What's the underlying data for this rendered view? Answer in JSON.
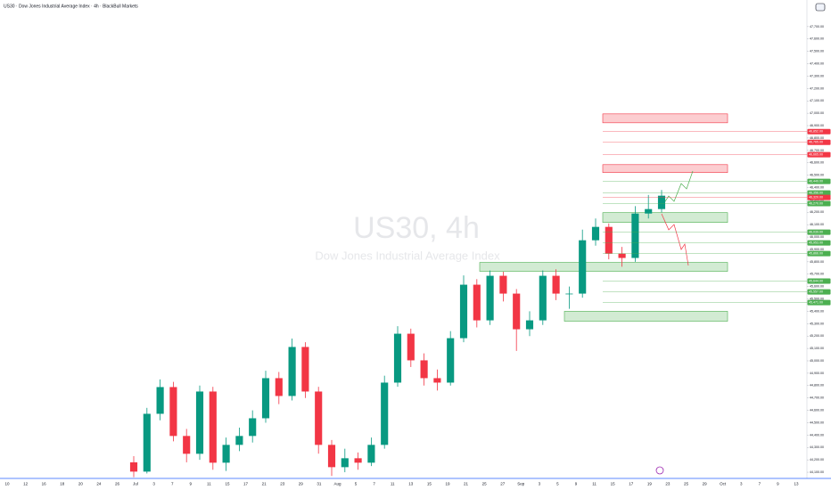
{
  "chart_data": {
    "type": "candlestick",
    "title": "US30 · Dow Jones Industrial Average Index · 4h · BlackBull Markets",
    "watermark": "US30, 4h",
    "watermark_subtitle": "Dow Jones Industrial Average Index",
    "up_color": "#089981",
    "down_color": "#f23645",
    "x_labels": [
      "10",
      "12",
      "16",
      "18",
      "20",
      "24",
      "26",
      "Jul",
      "3",
      "7",
      "9",
      "11",
      "15",
      "17",
      "21",
      "23",
      "29",
      "31",
      "Aug",
      "5",
      "7",
      "11",
      "13",
      "15",
      "19",
      "21",
      "25",
      "27",
      "Sep",
      "3",
      "5",
      "9",
      "11",
      "15",
      "17",
      "19",
      "23",
      "25",
      "29",
      "Oct",
      "3",
      "7",
      "9",
      "13"
    ],
    "candles": {
      "open": [
        44180,
        44105,
        44572,
        44788,
        44393,
        44249,
        44752,
        44177,
        44321,
        44393,
        44536,
        44860,
        44716,
        45112,
        44752,
        44321,
        44141,
        44213,
        44177,
        44321,
        44824,
        45219,
        45004,
        44860,
        44824,
        45183,
        45615,
        45327,
        45687,
        45543,
        45255,
        45327,
        45687,
        45543,
        45543,
        45974,
        46082,
        45867,
        45831,
        46190,
        46226
      ],
      "high": [
        44230,
        44620,
        44850,
        44830,
        44450,
        44800,
        44790,
        44380,
        44460,
        44600,
        44920,
        44910,
        45180,
        45150,
        44790,
        44360,
        44290,
        44260,
        44380,
        44880,
        45280,
        45260,
        45060,
        44930,
        45240,
        45690,
        45660,
        45730,
        45720,
        45580,
        45400,
        45730,
        45740,
        45600,
        46060,
        46150,
        46110,
        45920,
        46250,
        46340,
        46380
      ],
      "low": [
        44060,
        44090,
        44520,
        44350,
        44180,
        44200,
        44120,
        44110,
        44270,
        44340,
        44500,
        44650,
        44680,
        44700,
        44250,
        44070,
        44100,
        44120,
        44150,
        44290,
        44790,
        44950,
        44800,
        44760,
        44800,
        45150,
        45270,
        45290,
        45480,
        45080,
        45200,
        45290,
        45490,
        45420,
        45510,
        45930,
        45820,
        45760,
        45800,
        46150,
        46200
      ],
      "close": [
        44105,
        44572,
        44788,
        44393,
        44249,
        44752,
        44177,
        44321,
        44393,
        44536,
        44860,
        44716,
        45112,
        44752,
        44321,
        44141,
        44213,
        44177,
        44321,
        44824,
        45219,
        45004,
        44860,
        44824,
        45183,
        45615,
        45327,
        45687,
        45543,
        45255,
        45327,
        45687,
        45543,
        45543,
        45974,
        46082,
        45867,
        45831,
        46190,
        46226,
        46334
      ]
    },
    "zones": [
      {
        "low": 46923,
        "high": 46995,
        "color": "#f23645"
      },
      {
        "low": 46521,
        "high": 46585,
        "color": "#f23645"
      },
      {
        "low": 46118,
        "high": 46197,
        "color": "#4caf50"
      },
      {
        "low": 45723,
        "high": 45795,
        "color": "#4caf50"
      },
      {
        "low": 45320,
        "high": 45400,
        "color": "#4caf50"
      }
    ],
    "levels": [
      {
        "value": 46852,
        "label": "46,852.00",
        "color": "#f23645"
      },
      {
        "value": 46765,
        "label": "46,765.00",
        "color": "#f23645"
      },
      {
        "value": 46665,
        "label": "46,665.00",
        "color": "#f23645"
      },
      {
        "value": 46449,
        "label": "46,449.00",
        "color": "#4caf50"
      },
      {
        "value": 46356,
        "label": "46,356.00",
        "color": "#4caf50"
      },
      {
        "value": 46320,
        "label": "46,320.00",
        "color": "#f23645"
      },
      {
        "value": 46270,
        "label": "46,270.00",
        "color": "#4caf50"
      },
      {
        "value": 46039,
        "label": "46,039.00",
        "color": "#4caf50"
      },
      {
        "value": 45953,
        "label": "45,953.00",
        "color": "#4caf50"
      },
      {
        "value": 45866,
        "label": "45,866.00",
        "color": "#4caf50"
      },
      {
        "value": 45644,
        "label": "45,644.00",
        "color": "#4caf50"
      },
      {
        "value": 45557,
        "label": "45,557.00",
        "color": "#4caf50"
      },
      {
        "value": 45471,
        "label": "45,471.00",
        "color": "#4caf50"
      }
    ],
    "ylim": [
      44050,
      47915
    ],
    "yticks": [
      {
        "value": 44100,
        "label": "44,100.00"
      },
      {
        "value": 44200,
        "label": "44,200.00"
      },
      {
        "value": 44300,
        "label": "44,300.00"
      },
      {
        "value": 44400,
        "label": "44,400.00"
      },
      {
        "value": 44500,
        "label": "44,500.00"
      },
      {
        "value": 44600,
        "label": "44,600.00"
      },
      {
        "value": 44700,
        "label": "44,700.00"
      },
      {
        "value": 44800,
        "label": "44,800.00"
      },
      {
        "value": 44900,
        "label": "44,900.00"
      },
      {
        "value": 45000,
        "label": "45,000.00"
      },
      {
        "value": 45100,
        "label": "45,100.00"
      },
      {
        "value": 45200,
        "label": "45,200.00"
      },
      {
        "value": 45300,
        "label": "45,300.00"
      },
      {
        "value": 45400,
        "label": "45,400.00"
      },
      {
        "value": 45500,
        "label": "45,500.00"
      },
      {
        "value": 45600,
        "label": "45,600.00"
      },
      {
        "value": 45700,
        "label": "45,700.00"
      },
      {
        "value": 45800,
        "label": "45,800.00"
      },
      {
        "value": 45900,
        "label": "45,900.00"
      },
      {
        "value": 46000,
        "label": "46,000.00"
      },
      {
        "value": 46100,
        "label": "46,100.00"
      },
      {
        "value": 46200,
        "label": "46,200.00"
      },
      {
        "value": 46300,
        "label": "46,300.00"
      },
      {
        "value": 46400,
        "label": "46,400.00"
      },
      {
        "value": 46500,
        "label": "46,500.00"
      },
      {
        "value": 46600,
        "label": "46,600.00"
      },
      {
        "value": 46700,
        "label": "46,700.00"
      },
      {
        "value": 46800,
        "label": "46,800.00"
      },
      {
        "value": 46900,
        "label": "46,900.00"
      },
      {
        "value": 47000,
        "label": "47,000.00"
      },
      {
        "value": 47100,
        "label": "47,100.00"
      },
      {
        "value": 47200,
        "label": "47,200.00"
      },
      {
        "value": 47300,
        "label": "47,300.00"
      },
      {
        "value": 47400,
        "label": "47,400.00"
      },
      {
        "value": 47500,
        "label": "47,500.00"
      },
      {
        "value": 47600,
        "label": "47,600.00"
      },
      {
        "value": 47700,
        "label": "47,700.00"
      }
    ]
  }
}
